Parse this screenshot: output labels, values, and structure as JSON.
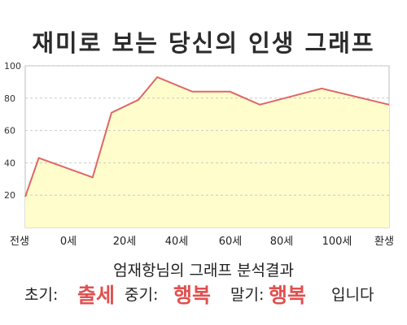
{
  "title": "재미로 보는 당신의 인생 그래프",
  "chart_data": {
    "type": "area",
    "x_labels": [
      "전생",
      "0세",
      "20세",
      "40세",
      "60세",
      "80세",
      "100세",
      "환생"
    ],
    "y_ticks": [
      20,
      40,
      60,
      80,
      100
    ],
    "ylim": [
      0,
      100
    ],
    "points": [
      {
        "x": -5,
        "y": 19
      },
      {
        "x": 0,
        "y": 43
      },
      {
        "x": 20,
        "y": 31
      },
      {
        "x": 27,
        "y": 71
      },
      {
        "x": 37,
        "y": 79
      },
      {
        "x": 44,
        "y": 93
      },
      {
        "x": 57,
        "y": 84
      },
      {
        "x": 71,
        "y": 84
      },
      {
        "x": 82,
        "y": 76
      },
      {
        "x": 105,
        "y": 86
      },
      {
        "x": 130,
        "y": 76
      }
    ],
    "colors": {
      "line": "#e06666",
      "fill": "#fffdcc",
      "grid": "#c9c9c9"
    }
  },
  "summary": "엄재항님의 그래프 분석결과",
  "result": {
    "early_label": "초기:",
    "early_value": "출세",
    "mid_label": "중기:",
    "mid_value": "행복",
    "late_label": "말기:",
    "late_value": "행복",
    "suffix": "입니다"
  }
}
